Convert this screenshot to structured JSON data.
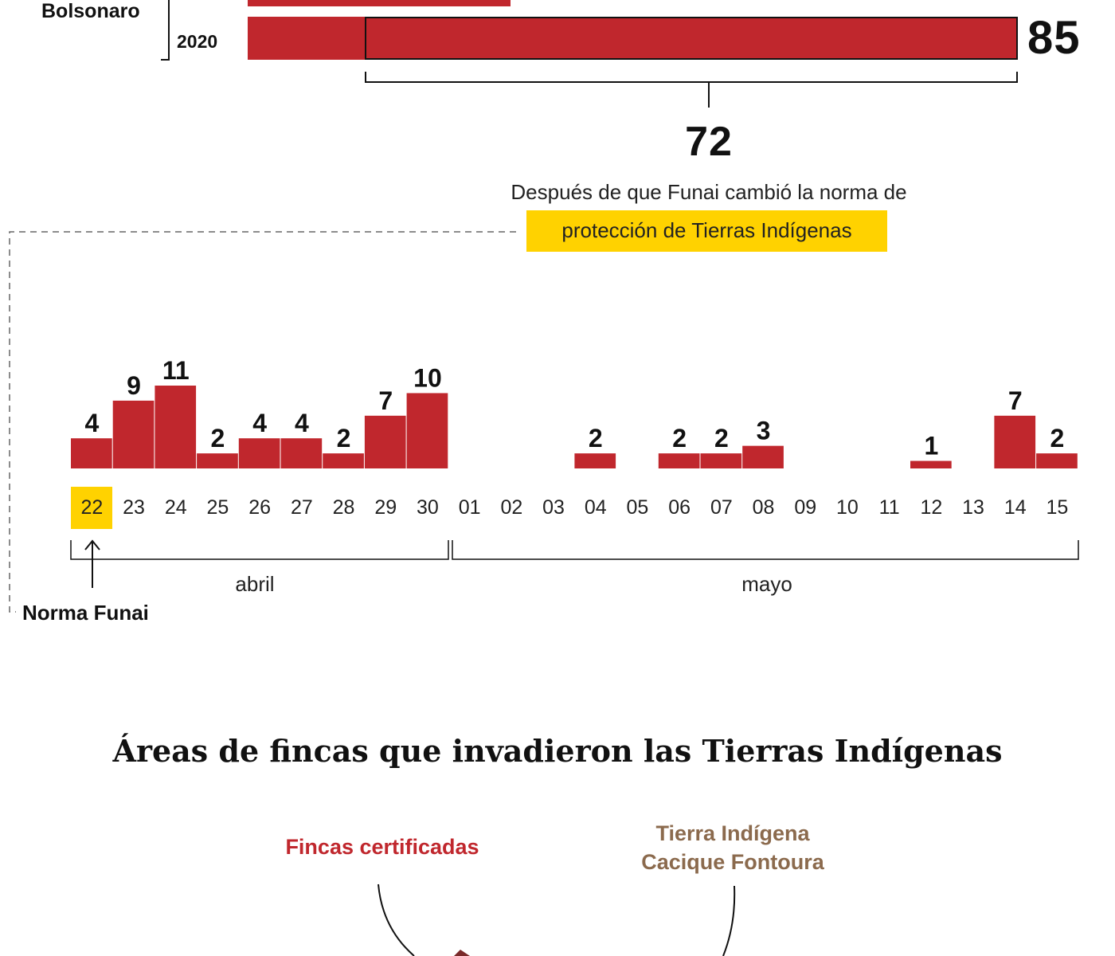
{
  "top_chart": {
    "president_label": "Bolsonaro",
    "year_label": "2020",
    "total_value": "85",
    "after_value": "72",
    "after_description": "Después de que Funai cambió la norma de",
    "highlight_text": "protección de Tierras Indígenas",
    "bar_color": "#c0272d",
    "highlight_color": "#ffd200"
  },
  "chart_data": {
    "type": "bar",
    "title": "",
    "xlabel": "",
    "ylabel": "",
    "categories": [
      "22",
      "23",
      "24",
      "25",
      "26",
      "27",
      "28",
      "29",
      "30",
      "01",
      "02",
      "03",
      "04",
      "05",
      "06",
      "07",
      "08",
      "09",
      "10",
      "11",
      "12",
      "13",
      "14",
      "15"
    ],
    "values": [
      4,
      9,
      11,
      2,
      4,
      4,
      2,
      7,
      10,
      0,
      0,
      0,
      2,
      0,
      2,
      2,
      3,
      0,
      0,
      0,
      1,
      0,
      7,
      2
    ],
    "ylim": [
      0,
      11
    ],
    "months": [
      {
        "label": "abril",
        "from": "22",
        "to": "30"
      },
      {
        "label": "mayo",
        "from": "01",
        "to": "15"
      }
    ],
    "highlighted_category": "22",
    "annotation": "Norma Funai",
    "bar_color": "#c0272d"
  },
  "section": {
    "title": "Áreas de fincas que invadieron las Tierras Indígenas",
    "legend_fincas": "Fincas certificadas",
    "legend_tierra_line1": "Tierra Indígena",
    "legend_tierra_line2": "Cacique Fontoura",
    "fincas_color": "#c0272d",
    "tierra_color": "#8b6a4d"
  }
}
